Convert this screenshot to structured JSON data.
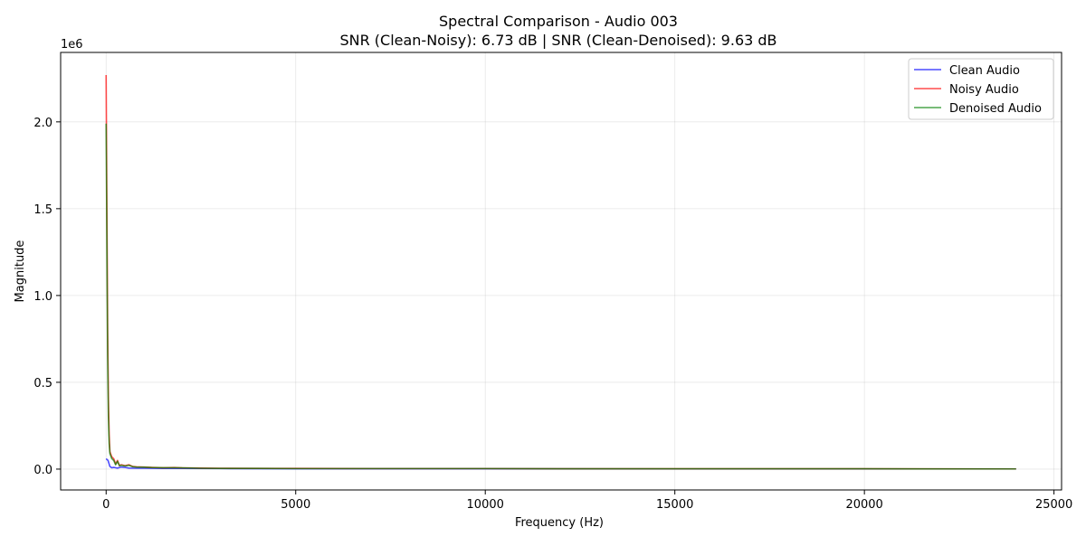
{
  "chart_data": {
    "type": "line",
    "title": "Spectral Comparison - Audio 003",
    "subtitle": "SNR (Clean-Noisy): 6.73 dB | SNR (Clean-Denoised): 9.63 dB",
    "xlabel": "Frequency (Hz)",
    "ylabel": "Magnitude",
    "y_scale_label": "1e6",
    "xlim": [
      -1200,
      25200
    ],
    "ylim": [
      -0.12,
      2.4
    ],
    "x_ticks": [
      0,
      5000,
      10000,
      15000,
      20000,
      25000
    ],
    "x_tick_labels": [
      "0",
      "5000",
      "10000",
      "15000",
      "20000",
      "25000"
    ],
    "y_ticks": [
      0.0,
      0.5,
      1.0,
      1.5,
      2.0
    ],
    "y_tick_labels": [
      "0.0",
      "0.5",
      "1.0",
      "1.5",
      "2.0"
    ],
    "grid": true,
    "legend_position": "top-right",
    "series": [
      {
        "name": "Clean Audio",
        "color": "#0000ff",
        "x": [
          0,
          50,
          100,
          150,
          200,
          300,
          400,
          500,
          600,
          800,
          1000,
          1500,
          2000,
          3000,
          5000,
          10000,
          15000,
          20000,
          24000
        ],
        "y": [
          0.06,
          0.05,
          0.015,
          0.008,
          0.01,
          0.006,
          0.012,
          0.01,
          0.006,
          0.005,
          0.005,
          0.004,
          0.004,
          0.003,
          0.002,
          0.002,
          0.001,
          0.001,
          0.001
        ]
      },
      {
        "name": "Noisy Audio",
        "color": "#ff0000",
        "x": [
          0,
          20,
          40,
          60,
          80,
          100,
          150,
          200,
          250,
          300,
          350,
          400,
          500,
          600,
          700,
          800,
          1000,
          1200,
          1500,
          1800,
          2000,
          2500,
          3000,
          4000,
          5000,
          7000,
          10000,
          12000,
          15000,
          18000,
          20000,
          24000
        ],
        "y": [
          2.27,
          1.5,
          0.8,
          0.4,
          0.2,
          0.1,
          0.07,
          0.06,
          0.03,
          0.05,
          0.02,
          0.025,
          0.02,
          0.025,
          0.015,
          0.013,
          0.012,
          0.01,
          0.008,
          0.009,
          0.007,
          0.006,
          0.005,
          0.004,
          0.004,
          0.003,
          0.003,
          0.002,
          0.002,
          0.002,
          0.002,
          0.001
        ]
      },
      {
        "name": "Denoised Audio",
        "color": "#008000",
        "x": [
          0,
          20,
          40,
          60,
          80,
          100,
          150,
          200,
          250,
          300,
          350,
          400,
          500,
          600,
          700,
          800,
          1000,
          1200,
          1500,
          1800,
          2000,
          2500,
          3000,
          4000,
          5000,
          7000,
          10000,
          12000,
          15000,
          18000,
          20000,
          24000
        ],
        "y": [
          1.99,
          1.3,
          0.65,
          0.3,
          0.15,
          0.09,
          0.06,
          0.05,
          0.025,
          0.045,
          0.02,
          0.022,
          0.018,
          0.022,
          0.014,
          0.012,
          0.011,
          0.009,
          0.008,
          0.008,
          0.007,
          0.005,
          0.004,
          0.004,
          0.003,
          0.003,
          0.003,
          0.002,
          0.002,
          0.002,
          0.002,
          0.001
        ]
      }
    ]
  }
}
